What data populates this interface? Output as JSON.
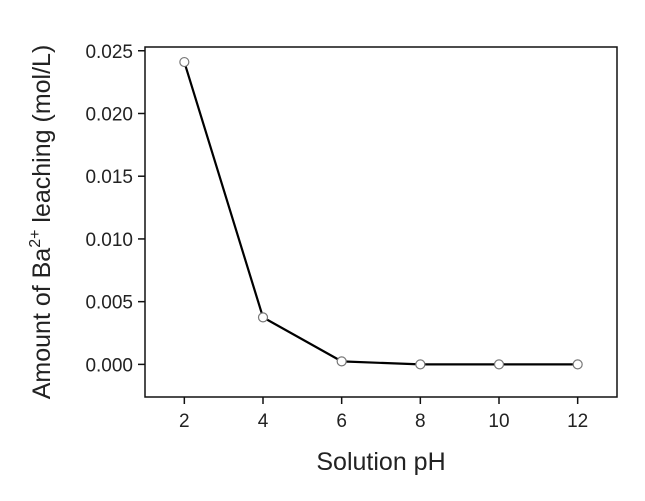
{
  "chart_data": {
    "type": "line",
    "xlabel": "Solution pH",
    "ylabel": [
      "Amount of Ba",
      "2+",
      " leaching (mol/L)"
    ],
    "x": [
      2,
      4,
      6,
      8,
      10,
      12
    ],
    "series": [
      {
        "color": "#000000",
        "values": [
          0.0241,
          0.00375,
          0.00024,
          0,
          0,
          0
        ]
      }
    ],
    "xlim": [
      1,
      13
    ],
    "xticks": [
      2,
      4,
      6,
      8,
      10,
      12
    ],
    "ylim": [
      -0.0026,
      0.0253
    ],
    "yticks": [
      {
        "value": 0,
        "label": "0.000"
      },
      {
        "value": 0.005,
        "label": "0.005"
      },
      {
        "value": 0.01,
        "label": "0.010"
      },
      {
        "value": 0.015,
        "label": "0.015"
      },
      {
        "value": 0.02,
        "label": "0.020"
      },
      {
        "value": 0.025,
        "label": "0.025"
      }
    ],
    "grid": false
  }
}
